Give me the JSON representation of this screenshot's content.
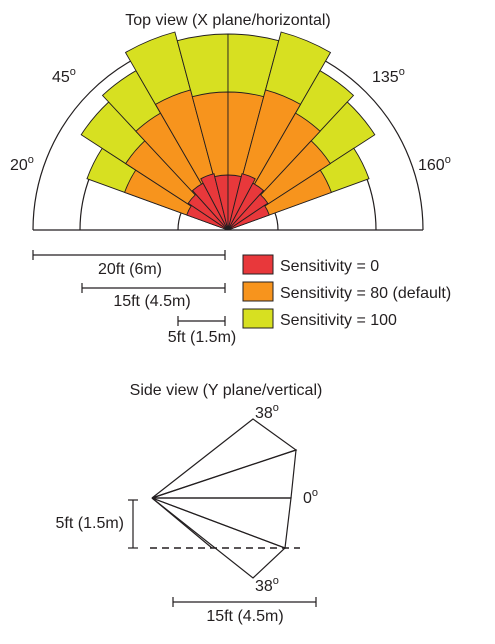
{
  "top_view": {
    "title": "Top view (X plane/horizontal)",
    "angle_labels": [
      {
        "text": "20",
        "sup": "o"
      },
      {
        "text": "45",
        "sup": "o"
      },
      {
        "text": "135",
        "sup": "o"
      },
      {
        "text": "160",
        "sup": "o"
      }
    ],
    "scale_labels": [
      "20ft (6m)",
      "15ft (4.5m)",
      "5ft (1.5m)"
    ],
    "legend": [
      {
        "label": "Sensitivity = 0",
        "color": "#e8383b"
      },
      {
        "label": "Sensitivity = 80 (default)",
        "color": "#f7941d"
      },
      {
        "label": "Sensitivity = 100",
        "color": "#d7e021"
      }
    ]
  },
  "side_view": {
    "title": "Side view (Y plane/vertical)",
    "angle_labels": [
      {
        "text": "38",
        "sup": "o"
      },
      {
        "text": "0",
        "sup": "o"
      },
      {
        "text": "38",
        "sup": "o"
      }
    ],
    "height_label": "5ft (1.5m)",
    "distance_label": "15ft (4.5m)"
  },
  "colors": {
    "red": "#e8383b",
    "orange": "#f7941d",
    "yellow": "#d7e021",
    "outline": "#231f20"
  }
}
